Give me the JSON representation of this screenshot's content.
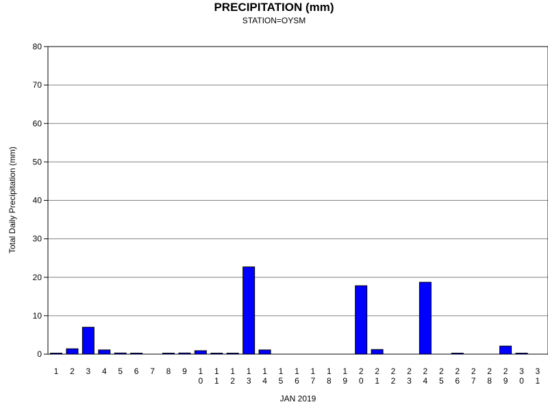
{
  "chart_data": {
    "type": "bar",
    "title": "PRECIPITATION (mm)",
    "subtitle": "STATION=OYSM",
    "xlabel": "JAN 2019",
    "ylabel": "Total Daily Precipitation (mm)",
    "ylim": [
      0,
      80
    ],
    "yticks": [
      0,
      10,
      20,
      30,
      40,
      50,
      60,
      70,
      80
    ],
    "grid": true,
    "bar_color": "#0000ff",
    "categories": [
      "1",
      "2",
      "3",
      "4",
      "5",
      "6",
      "7",
      "8",
      "9",
      "10",
      "11",
      "12",
      "13",
      "14",
      "15",
      "16",
      "17",
      "18",
      "19",
      "20",
      "21",
      "22",
      "23",
      "24",
      "25",
      "26",
      "27",
      "28",
      "29",
      "30",
      "31"
    ],
    "values": [
      0.1,
      1.4,
      7.0,
      1.1,
      0.3,
      0.1,
      0,
      0.1,
      0.3,
      0.9,
      0.1,
      0.1,
      22.7,
      1.1,
      0,
      0,
      0,
      0,
      0,
      17.8,
      1.2,
      0,
      0,
      18.7,
      0,
      0.1,
      0,
      0,
      2.1,
      0.1,
      0
    ]
  }
}
